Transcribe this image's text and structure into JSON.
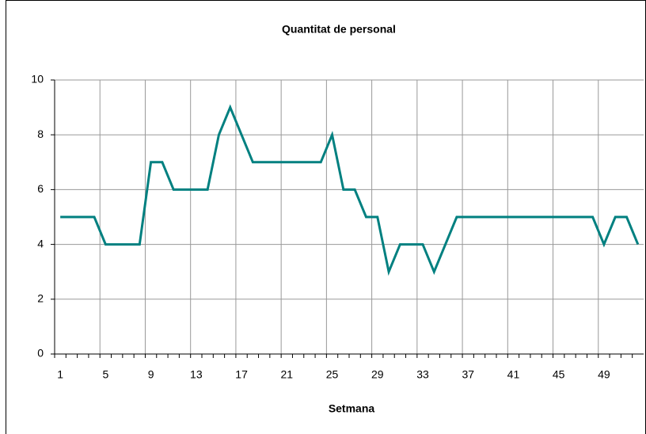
{
  "chart_data": {
    "type": "line",
    "title": "Quantitat de personal",
    "x_label": "Setmana",
    "categories": [
      "1",
      null,
      null,
      null,
      "5",
      null,
      null,
      null,
      "9",
      null,
      null,
      null,
      "13",
      null,
      null,
      null,
      "17",
      null,
      null,
      null,
      "21",
      null,
      null,
      null,
      "25",
      null,
      null,
      null,
      "29",
      null,
      null,
      null,
      "33",
      null,
      null,
      null,
      "37",
      null,
      null,
      null,
      "41",
      null,
      null,
      null,
      "45",
      null,
      null,
      null,
      "49",
      null,
      null,
      null
    ],
    "series": [
      {
        "color": "#008080",
        "values": [
          5,
          5,
          5,
          5,
          4,
          4,
          4,
          4,
          7,
          7,
          6,
          6,
          6,
          6,
          8,
          9,
          8,
          7,
          7,
          7,
          7,
          7,
          7,
          7,
          8,
          6,
          6,
          5,
          5,
          3,
          4,
          4,
          4,
          3,
          4,
          5,
          5,
          5,
          5,
          5,
          5,
          5,
          5,
          5,
          5,
          5,
          5,
          5,
          4,
          5,
          5,
          4
        ]
      }
    ],
    "ylim": [
      0,
      10
    ],
    "yticks": [
      0,
      2,
      4,
      6,
      8,
      10
    ],
    "grid": true
  }
}
